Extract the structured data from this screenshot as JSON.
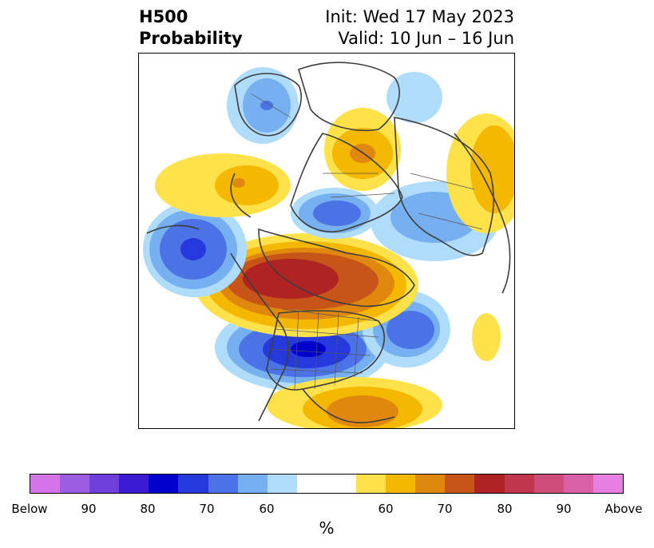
{
  "title": {
    "left_line1": "H500",
    "left_line2": "Probability",
    "right_line1": "Init: Wed 17 May 2023",
    "right_line2": "Valid: 10 Jun – 16 Jun"
  },
  "colorbar": {
    "unit": "%",
    "colors": [
      "#d573e8",
      "#9c5ce4",
      "#6e3fdb",
      "#3b1bd4",
      "#0000cd",
      "#2539dc",
      "#4b73e6",
      "#77b0f0",
      "#aedcfa",
      "#ffffff",
      "#ffe24a",
      "#f5b800",
      "#e0880e",
      "#c85518",
      "#b02323",
      "#c1364c",
      "#cc4c7a",
      "#d95fa6",
      "#e77fe0"
    ],
    "ticks": [
      "Below",
      "90",
      "80",
      "70",
      "60",
      "60",
      "70",
      "80",
      "90",
      "Above"
    ]
  },
  "map": {
    "projection": "polar-stereographic",
    "region": "Northern Hemisphere",
    "anomalies": [
      {
        "name": "below-normal-north-america",
        "category": "below",
        "peak_percent": 80
      },
      {
        "name": "above-normal-arctic",
        "category": "above",
        "peak_percent": 80
      },
      {
        "name": "below-normal-north-pacific",
        "category": "below",
        "peak_percent": 70
      },
      {
        "name": "below-normal-siberia",
        "category": "below",
        "peak_percent": 60
      },
      {
        "name": "above-normal-europe",
        "category": "above",
        "peak_percent": 70
      },
      {
        "name": "below-normal-north-atlantic",
        "category": "below",
        "peak_percent": 70
      },
      {
        "name": "above-normal-southern-us",
        "category": "above",
        "peak_percent": 70
      }
    ]
  }
}
